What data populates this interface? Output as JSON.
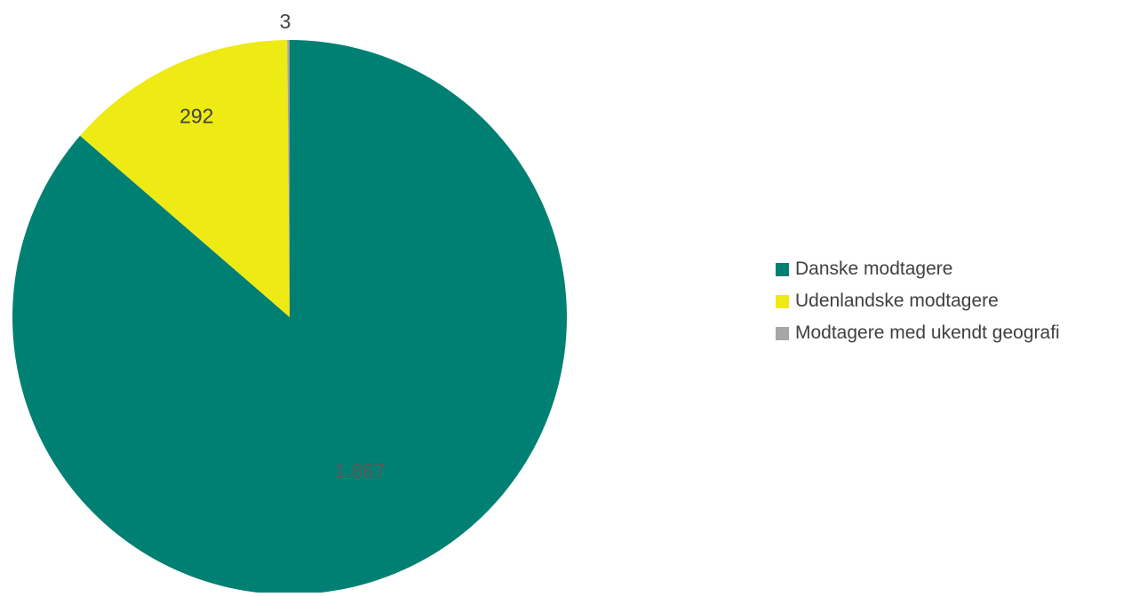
{
  "chart_data": {
    "type": "pie",
    "title": "",
    "start_angle": "12 o'clock, clockwise",
    "legend_position": "right",
    "slices": [
      {
        "name": "Danske modtagere",
        "value": 1867,
        "label": "1.867",
        "color": "#008073",
        "label_color": "#595959"
      },
      {
        "name": "Udenlandske modtagere",
        "value": 292,
        "label": "292",
        "color": "#eeea14",
        "label_color": "#404040"
      },
      {
        "name": "Modtagere med ukendt geografi",
        "value": 3,
        "label": "3",
        "color": "#a6a6a6",
        "label_color": "#404040"
      }
    ]
  }
}
